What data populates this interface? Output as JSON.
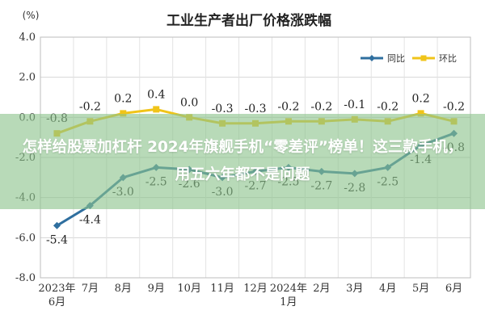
{
  "chart_data": {
    "type": "line",
    "title": "工业生产者出厂价格涨跌幅",
    "unit_label": "(%)",
    "categories": [
      [
        "2023年",
        "6月"
      ],
      [
        "7月"
      ],
      [
        "8月"
      ],
      [
        "9月"
      ],
      [
        "10月"
      ],
      [
        "11月"
      ],
      [
        "12月"
      ],
      [
        "2024年",
        "1月"
      ],
      [
        "2月"
      ],
      [
        "3月"
      ],
      [
        "4月"
      ],
      [
        "5月"
      ],
      [
        "6月"
      ]
    ],
    "ylim": [
      -8.0,
      4.0
    ],
    "yticks": [
      "4.0",
      "2.0",
      "0.0",
      "-2.0",
      "-4.0",
      "-6.0",
      "-8.0"
    ],
    "ytick_values": [
      4,
      2,
      0,
      -2,
      -4,
      -6,
      -8
    ],
    "grid": true,
    "legend_position": "top-right",
    "series": [
      {
        "name": "同比",
        "color": "#2f6f9f",
        "values": [
          -5.4,
          -4.4,
          -3.0,
          -2.5,
          -2.6,
          -3.0,
          -2.7,
          -2.5,
          -2.7,
          -2.8,
          -2.5,
          -1.4,
          -0.8
        ],
        "labels": [
          "-5.4",
          "-4.4",
          "-3.0",
          "-2.5",
          "-2.6",
          "-3.0",
          "-2.7",
          "-2.5",
          "-2.7",
          "-2.8",
          "-2.5",
          "-1.4",
          "-0.8"
        ]
      },
      {
        "name": "环比",
        "color": "#f0c419",
        "values": [
          -0.8,
          -0.2,
          0.2,
          0.4,
          0.0,
          -0.3,
          -0.3,
          -0.2,
          -0.2,
          -0.1,
          -0.2,
          0.2,
          -0.2
        ],
        "labels": [
          "-0.8",
          "-0.2",
          "0.2",
          "0.4",
          "0.0",
          "-0.3",
          "-0.3",
          "-0.2",
          "-0.2",
          "-0.1",
          "-0.2",
          "0.2",
          "-0.2"
        ]
      }
    ]
  },
  "banner": {
    "text": "怎样给股票加杠杆 2024年旗舰手机“零差评”榜单！这三款手机，用五六年都不是问题"
  }
}
